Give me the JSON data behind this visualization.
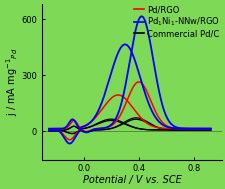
{
  "background_color": "#7ed957",
  "plot_bg": "#c8e8a0",
  "xlim": [
    -0.3,
    1.0
  ],
  "ylim": [
    -150,
    680
  ],
  "xlabel": "Potential / V vs. SCE",
  "ylabel": "j / mA mg$^{-1}$$_{Pd}$",
  "yticks": [
    0,
    300,
    600
  ],
  "ytick_labels": [
    "0",
    "300",
    "600"
  ],
  "xticks": [
    0.0,
    0.4,
    0.8
  ],
  "xtick_labels": [
    "0.0",
    "0.4",
    "0.8"
  ],
  "axis_fontsize": 7,
  "legend_fontsize": 6,
  "tick_fontsize": 6
}
